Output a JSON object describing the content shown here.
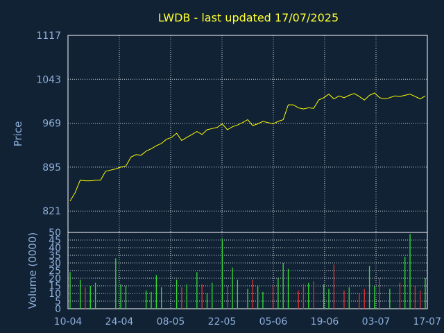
{
  "chart_data": {
    "title": "LWDB - last updated 17/07/2025",
    "price_panel": {
      "type": "line",
      "ylabel": "Price",
      "ylim": [
        785,
        1117
      ],
      "yticks": [
        "1117",
        "1043",
        "969",
        "895",
        "821"
      ],
      "color": "#ffff00",
      "grid": true
    },
    "volume_panel": {
      "type": "bar",
      "ylabel": "Volume (0000)",
      "ylim": [
        0,
        50
      ],
      "yticks": [
        "50",
        "45",
        "40",
        "35",
        "30",
        "25",
        "20",
        "15",
        "10",
        "5",
        "0"
      ],
      "up_color": "#33dd33",
      "down_color": "#dd3333",
      "grid": true
    },
    "xticks": [
      "10-04",
      "24-04",
      "08-05",
      "22-05",
      "05-06",
      "19-06",
      "03-07",
      "17-07"
    ],
    "dates": [
      "10-04",
      "11-04",
      "14-04",
      "15-04",
      "16-04",
      "17-04",
      "18-04",
      "21-04",
      "22-04",
      "23-04",
      "24-04",
      "25-04",
      "28-04",
      "29-04",
      "30-04",
      "01-05",
      "02-05",
      "05-05",
      "06-05",
      "07-05",
      "08-05",
      "09-05",
      "12-05",
      "13-05",
      "14-05",
      "15-05",
      "16-05",
      "19-05",
      "20-05",
      "21-05",
      "22-05",
      "23-05",
      "26-05",
      "27-05",
      "28-05",
      "29-05",
      "30-05",
      "02-06",
      "03-06",
      "04-06",
      "05-06",
      "06-06",
      "09-06",
      "10-06",
      "11-06",
      "12-06",
      "13-06",
      "16-06",
      "17-06",
      "18-06",
      "19-06",
      "20-06",
      "23-06",
      "24-06",
      "25-06",
      "26-06",
      "27-06",
      "30-06",
      "01-07",
      "02-07",
      "03-07",
      "04-07",
      "07-07",
      "08-07",
      "09-07",
      "10-07",
      "11-07",
      "14-07",
      "15-07",
      "16-07",
      "17-07"
    ],
    "close": [
      838,
      852,
      873,
      872,
      872,
      873,
      873,
      888,
      890,
      892,
      895,
      897,
      912,
      916,
      915,
      922,
      926,
      931,
      935,
      942,
      945,
      952,
      940,
      945,
      950,
      955,
      950,
      958,
      960,
      962,
      968,
      958,
      963,
      966,
      970,
      975,
      965,
      968,
      972,
      970,
      968,
      972,
      975,
      1000,
      1000,
      995,
      993,
      995,
      994,
      1008,
      1012,
      1018,
      1010,
      1015,
      1012,
      1016,
      1019,
      1014,
      1008,
      1016,
      1020,
      1012,
      1010,
      1012,
      1015,
      1014,
      1016,
      1018,
      1014,
      1010,
      1015
    ],
    "volume": [
      24,
      0,
      19,
      14,
      15,
      17,
      0,
      0,
      0,
      33,
      16,
      15,
      0,
      0,
      0,
      12,
      11,
      22,
      14,
      0,
      0,
      19,
      14,
      16,
      0,
      24,
      16,
      10,
      17,
      0,
      46,
      15,
      27,
      19,
      0,
      13,
      19,
      15,
      11,
      0,
      15,
      20,
      30,
      26,
      0,
      12,
      16,
      17,
      18,
      0,
      16,
      13,
      29,
      0,
      12,
      14,
      0,
      10,
      13,
      28,
      15,
      20,
      0,
      13,
      0,
      17,
      34,
      49,
      15,
      12,
      20
    ]
  }
}
